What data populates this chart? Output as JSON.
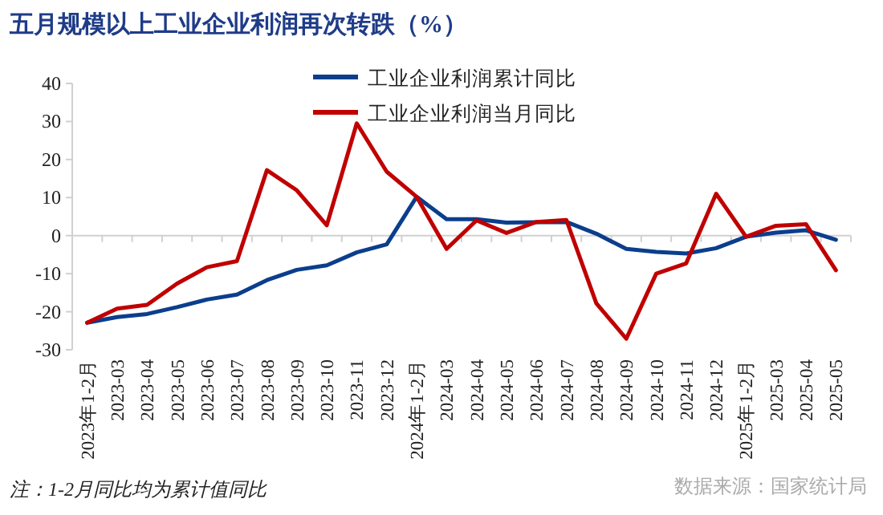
{
  "chart_data": {
    "type": "line",
    "title": "五月规模以上工业企业利润再次转跌（%）",
    "categories": [
      "2023年1-2月",
      "2023-03",
      "2023-04",
      "2023-05",
      "2023-06",
      "2023-07",
      "2023-08",
      "2023-09",
      "2023-10",
      "2023-11",
      "2023-12",
      "2024年1-2月",
      "2024-03",
      "2024-04",
      "2024-05",
      "2024-06",
      "2024-07",
      "2024-08",
      "2024-09",
      "2024-10",
      "2024-11",
      "2024-12",
      "2025年1-2月",
      "2025-03",
      "2025-04",
      "2025-05"
    ],
    "series": [
      {
        "name": "工业企业利润累计同比",
        "color": "#0b3e8c",
        "values": [
          -22.9,
          -21.4,
          -20.6,
          -18.8,
          -16.8,
          -15.5,
          -11.7,
          -9.0,
          -7.8,
          -4.4,
          -2.3,
          10.2,
          4.3,
          4.3,
          3.4,
          3.5,
          3.6,
          0.5,
          -3.5,
          -4.3,
          -4.7,
          -3.3,
          -0.3,
          0.8,
          1.4,
          -1.1
        ]
      },
      {
        "name": "工业企业利润当月同比",
        "color": "#c00000",
        "values": [
          -22.9,
          -19.2,
          -18.2,
          -12.6,
          -8.3,
          -6.7,
          17.2,
          11.9,
          2.7,
          29.5,
          16.8,
          10.2,
          -3.5,
          4.0,
          0.7,
          3.6,
          4.1,
          -17.8,
          -27.1,
          -10.0,
          -7.3,
          11.0,
          -0.3,
          2.6,
          3.0,
          -9.1
        ]
      }
    ],
    "ylim": [
      -30,
      40
    ],
    "yticks": [
      -30,
      -20,
      -10,
      0,
      10,
      20,
      30,
      40
    ],
    "legend": "top",
    "marker": "none",
    "line_style": "solid",
    "annotations": [
      "注：1-2月同比均为累计值同比",
      "数据来源：国家统计局"
    ]
  }
}
